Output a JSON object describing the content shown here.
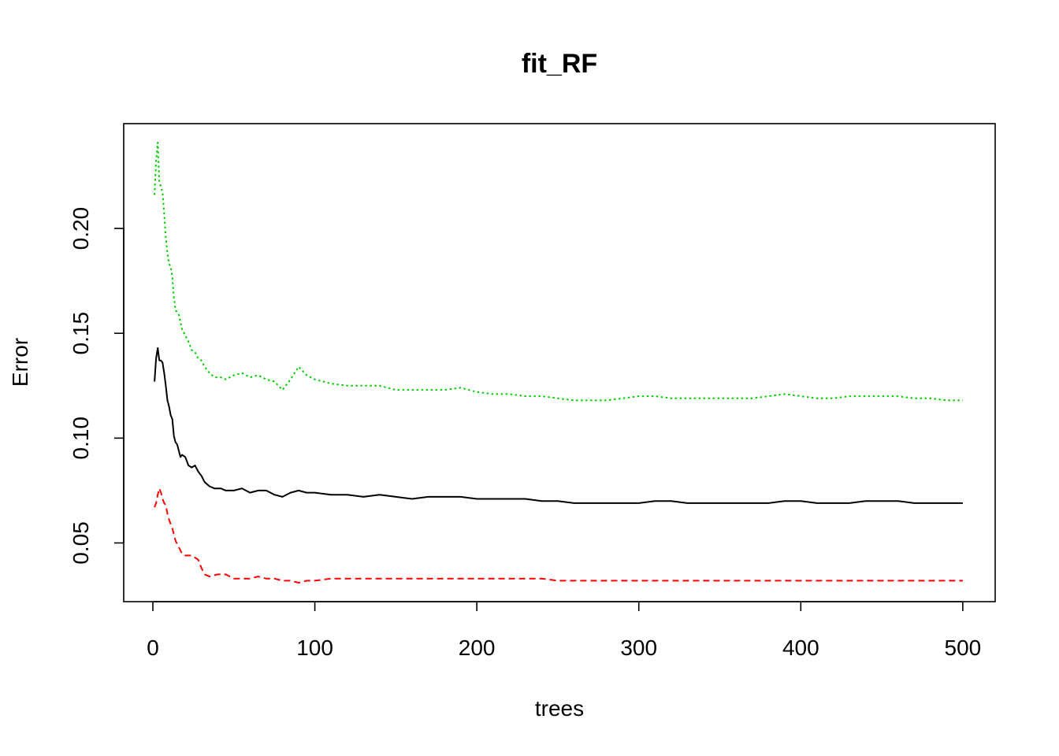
{
  "chart_data": {
    "type": "line",
    "title": "fit_RF",
    "xlabel": "trees",
    "ylabel": "Error",
    "xlim": [
      -18,
      520
    ],
    "ylim": [
      0.022,
      0.25
    ],
    "xticks": [
      0,
      100,
      200,
      300,
      400,
      500
    ],
    "xtick_labels": [
      "0",
      "100",
      "200",
      "300",
      "400",
      "500"
    ],
    "yticks": [
      0.05,
      0.1,
      0.15,
      0.2
    ],
    "ytick_labels": [
      "0.05",
      "0.10",
      "0.15",
      "0.20"
    ],
    "grid": false,
    "legend": "none",
    "series": [
      {
        "color": "#000000",
        "dash": "solid",
        "points": [
          [
            1,
            0.127
          ],
          [
            2,
            0.138
          ],
          [
            3,
            0.143
          ],
          [
            4,
            0.137
          ],
          [
            5,
            0.137
          ],
          [
            6,
            0.136
          ],
          [
            7,
            0.131
          ],
          [
            8,
            0.125
          ],
          [
            9,
            0.118
          ],
          [
            10,
            0.115
          ],
          [
            11,
            0.111
          ],
          [
            12,
            0.109
          ],
          [
            13,
            0.101
          ],
          [
            14,
            0.098
          ],
          [
            15,
            0.097
          ],
          [
            16,
            0.094
          ],
          [
            17,
            0.091
          ],
          [
            18,
            0.092
          ],
          [
            20,
            0.091
          ],
          [
            22,
            0.087
          ],
          [
            24,
            0.086
          ],
          [
            26,
            0.087
          ],
          [
            28,
            0.084
          ],
          [
            30,
            0.082
          ],
          [
            32,
            0.079
          ],
          [
            35,
            0.077
          ],
          [
            38,
            0.076
          ],
          [
            42,
            0.076
          ],
          [
            45,
            0.075
          ],
          [
            50,
            0.075
          ],
          [
            55,
            0.076
          ],
          [
            60,
            0.074
          ],
          [
            65,
            0.075
          ],
          [
            70,
            0.075
          ],
          [
            75,
            0.073
          ],
          [
            80,
            0.072
          ],
          [
            85,
            0.074
          ],
          [
            90,
            0.075
          ],
          [
            95,
            0.074
          ],
          [
            100,
            0.074
          ],
          [
            110,
            0.073
          ],
          [
            120,
            0.073
          ],
          [
            130,
            0.072
          ],
          [
            140,
            0.073
          ],
          [
            150,
            0.072
          ],
          [
            160,
            0.071
          ],
          [
            170,
            0.072
          ],
          [
            180,
            0.072
          ],
          [
            190,
            0.072
          ],
          [
            200,
            0.071
          ],
          [
            210,
            0.071
          ],
          [
            220,
            0.071
          ],
          [
            230,
            0.071
          ],
          [
            240,
            0.07
          ],
          [
            250,
            0.07
          ],
          [
            260,
            0.069
          ],
          [
            270,
            0.069
          ],
          [
            280,
            0.069
          ],
          [
            290,
            0.069
          ],
          [
            300,
            0.069
          ],
          [
            310,
            0.07
          ],
          [
            320,
            0.07
          ],
          [
            330,
            0.069
          ],
          [
            340,
            0.069
          ],
          [
            350,
            0.069
          ],
          [
            360,
            0.069
          ],
          [
            370,
            0.069
          ],
          [
            380,
            0.069
          ],
          [
            390,
            0.07
          ],
          [
            400,
            0.07
          ],
          [
            410,
            0.069
          ],
          [
            420,
            0.069
          ],
          [
            430,
            0.069
          ],
          [
            440,
            0.07
          ],
          [
            450,
            0.07
          ],
          [
            460,
            0.07
          ],
          [
            470,
            0.069
          ],
          [
            480,
            0.069
          ],
          [
            490,
            0.069
          ],
          [
            500,
            0.069
          ]
        ]
      },
      {
        "color": "#ff0000",
        "dash": "dashed",
        "points": [
          [
            1,
            0.067
          ],
          [
            2,
            0.069
          ],
          [
            3,
            0.073
          ],
          [
            4,
            0.076
          ],
          [
            5,
            0.074
          ],
          [
            6,
            0.071
          ],
          [
            7,
            0.069
          ],
          [
            8,
            0.068
          ],
          [
            9,
            0.064
          ],
          [
            10,
            0.061
          ],
          [
            12,
            0.057
          ],
          [
            14,
            0.051
          ],
          [
            16,
            0.048
          ],
          [
            18,
            0.045
          ],
          [
            20,
            0.044
          ],
          [
            22,
            0.044
          ],
          [
            24,
            0.044
          ],
          [
            26,
            0.043
          ],
          [
            28,
            0.042
          ],
          [
            30,
            0.038
          ],
          [
            32,
            0.035
          ],
          [
            35,
            0.034
          ],
          [
            40,
            0.035
          ],
          [
            45,
            0.035
          ],
          [
            50,
            0.033
          ],
          [
            55,
            0.033
          ],
          [
            60,
            0.033
          ],
          [
            65,
            0.034
          ],
          [
            70,
            0.033
          ],
          [
            75,
            0.033
          ],
          [
            80,
            0.032
          ],
          [
            85,
            0.032
          ],
          [
            90,
            0.031
          ],
          [
            95,
            0.032
          ],
          [
            100,
            0.032
          ],
          [
            110,
            0.033
          ],
          [
            120,
            0.033
          ],
          [
            130,
            0.033
          ],
          [
            140,
            0.033
          ],
          [
            150,
            0.033
          ],
          [
            160,
            0.033
          ],
          [
            170,
            0.033
          ],
          [
            180,
            0.033
          ],
          [
            190,
            0.033
          ],
          [
            200,
            0.033
          ],
          [
            210,
            0.033
          ],
          [
            220,
            0.033
          ],
          [
            230,
            0.033
          ],
          [
            240,
            0.033
          ],
          [
            250,
            0.032
          ],
          [
            260,
            0.032
          ],
          [
            270,
            0.032
          ],
          [
            280,
            0.032
          ],
          [
            290,
            0.032
          ],
          [
            300,
            0.032
          ],
          [
            310,
            0.032
          ],
          [
            320,
            0.032
          ],
          [
            330,
            0.032
          ],
          [
            340,
            0.032
          ],
          [
            350,
            0.032
          ],
          [
            360,
            0.032
          ],
          [
            370,
            0.032
          ],
          [
            380,
            0.032
          ],
          [
            390,
            0.032
          ],
          [
            400,
            0.032
          ],
          [
            410,
            0.032
          ],
          [
            420,
            0.032
          ],
          [
            430,
            0.032
          ],
          [
            440,
            0.032
          ],
          [
            450,
            0.032
          ],
          [
            460,
            0.032
          ],
          [
            470,
            0.032
          ],
          [
            480,
            0.032
          ],
          [
            490,
            0.032
          ],
          [
            500,
            0.032
          ]
        ]
      },
      {
        "color": "#00cd00",
        "dash": "dotted",
        "points": [
          [
            1,
            0.216
          ],
          [
            2,
            0.232
          ],
          [
            3,
            0.241
          ],
          [
            4,
            0.222
          ],
          [
            5,
            0.22
          ],
          [
            6,
            0.217
          ],
          [
            7,
            0.207
          ],
          [
            8,
            0.196
          ],
          [
            9,
            0.188
          ],
          [
            10,
            0.183
          ],
          [
            11,
            0.182
          ],
          [
            12,
            0.177
          ],
          [
            13,
            0.167
          ],
          [
            14,
            0.161
          ],
          [
            15,
            0.16
          ],
          [
            16,
            0.159
          ],
          [
            18,
            0.152
          ],
          [
            20,
            0.149
          ],
          [
            22,
            0.146
          ],
          [
            24,
            0.142
          ],
          [
            26,
            0.141
          ],
          [
            28,
            0.138
          ],
          [
            30,
            0.137
          ],
          [
            32,
            0.134
          ],
          [
            35,
            0.131
          ],
          [
            38,
            0.129
          ],
          [
            42,
            0.129
          ],
          [
            45,
            0.128
          ],
          [
            50,
            0.13
          ],
          [
            55,
            0.131
          ],
          [
            60,
            0.129
          ],
          [
            65,
            0.13
          ],
          [
            70,
            0.128
          ],
          [
            75,
            0.127
          ],
          [
            80,
            0.123
          ],
          [
            85,
            0.128
          ],
          [
            90,
            0.134
          ],
          [
            95,
            0.13
          ],
          [
            100,
            0.128
          ],
          [
            110,
            0.126
          ],
          [
            120,
            0.125
          ],
          [
            130,
            0.125
          ],
          [
            140,
            0.125
          ],
          [
            150,
            0.123
          ],
          [
            160,
            0.123
          ],
          [
            170,
            0.123
          ],
          [
            180,
            0.123
          ],
          [
            190,
            0.124
          ],
          [
            200,
            0.122
          ],
          [
            210,
            0.121
          ],
          [
            220,
            0.121
          ],
          [
            230,
            0.12
          ],
          [
            240,
            0.12
          ],
          [
            250,
            0.119
          ],
          [
            260,
            0.118
          ],
          [
            270,
            0.118
          ],
          [
            280,
            0.118
          ],
          [
            290,
            0.119
          ],
          [
            300,
            0.12
          ],
          [
            310,
            0.12
          ],
          [
            320,
            0.119
          ],
          [
            330,
            0.119
          ],
          [
            340,
            0.119
          ],
          [
            350,
            0.119
          ],
          [
            360,
            0.119
          ],
          [
            370,
            0.119
          ],
          [
            380,
            0.12
          ],
          [
            390,
            0.121
          ],
          [
            400,
            0.12
          ],
          [
            410,
            0.119
          ],
          [
            420,
            0.119
          ],
          [
            430,
            0.12
          ],
          [
            440,
            0.12
          ],
          [
            450,
            0.12
          ],
          [
            460,
            0.12
          ],
          [
            470,
            0.119
          ],
          [
            480,
            0.119
          ],
          [
            490,
            0.118
          ],
          [
            500,
            0.118
          ]
        ]
      }
    ]
  }
}
